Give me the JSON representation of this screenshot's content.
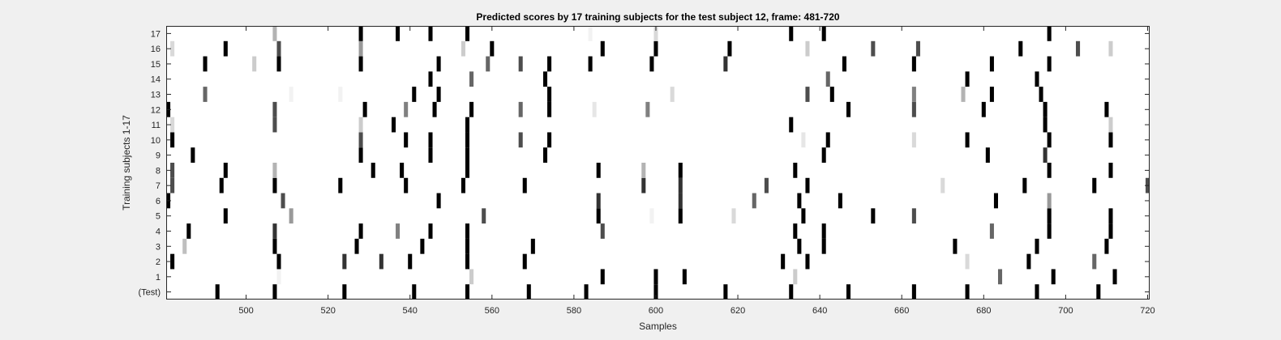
{
  "chart_data": {
    "type": "heatmap",
    "title": "Predicted scores by 17 training subjects for the test subject 12, frame: 481-720",
    "xlabel": "Samples",
    "ylabel": "Training subjects 1-17",
    "xlim": [
      481,
      720
    ],
    "x_ticks": [
      500,
      520,
      540,
      560,
      580,
      600,
      620,
      640,
      660,
      680,
      700,
      720
    ],
    "y_tick_labels": [
      "(Test)",
      "1",
      "2",
      "3",
      "4",
      "5",
      "6",
      "7",
      "8",
      "9",
      "10",
      "11",
      "12",
      "13",
      "14",
      "15",
      "16",
      "17"
    ],
    "colormap": "gray (0 = black, 1 = white)",
    "background_value": 1,
    "rows": [
      {
        "label": "(Test)",
        "cells": [
          [
            493,
            0
          ],
          [
            507,
            0
          ],
          [
            524,
            0
          ],
          [
            541,
            0
          ],
          [
            554,
            0
          ],
          [
            569,
            0
          ],
          [
            583,
            0
          ],
          [
            600,
            0
          ],
          [
            617,
            0
          ],
          [
            633,
            0
          ],
          [
            647,
            0
          ],
          [
            663,
            0
          ],
          [
            676,
            0
          ],
          [
            693,
            0
          ],
          [
            708,
            0
          ]
        ]
      },
      {
        "label": "1",
        "cells": [
          [
            508,
            0.95
          ],
          [
            555,
            0.8
          ],
          [
            587,
            0
          ],
          [
            600,
            0
          ],
          [
            607,
            0
          ],
          [
            634,
            0.8
          ],
          [
            684,
            0.4
          ],
          [
            697,
            0
          ],
          [
            712,
            0
          ]
        ]
      },
      {
        "label": "2",
        "cells": [
          [
            482,
            0
          ],
          [
            508,
            0
          ],
          [
            524,
            0.2
          ],
          [
            533,
            0.2
          ],
          [
            540,
            0
          ],
          [
            554,
            0
          ],
          [
            568,
            0
          ],
          [
            631,
            0
          ],
          [
            637,
            0
          ],
          [
            676,
            0.85
          ],
          [
            691,
            0
          ],
          [
            707,
            0.4
          ]
        ]
      },
      {
        "label": "3",
        "cells": [
          [
            485,
            0.75
          ],
          [
            507,
            0
          ],
          [
            527,
            0
          ],
          [
            543,
            0
          ],
          [
            554,
            0
          ],
          [
            570,
            0
          ],
          [
            635,
            0
          ],
          [
            641,
            0
          ],
          [
            673,
            0
          ],
          [
            693,
            0
          ],
          [
            710,
            0
          ]
        ]
      },
      {
        "label": "4",
        "cells": [
          [
            486,
            0
          ],
          [
            507,
            0.2
          ],
          [
            528,
            0
          ],
          [
            537,
            0.5
          ],
          [
            545,
            0
          ],
          [
            554,
            0
          ],
          [
            587,
            0.3
          ],
          [
            634,
            0
          ],
          [
            641,
            0
          ],
          [
            682,
            0.4
          ],
          [
            696,
            0
          ],
          [
            711,
            0
          ]
        ]
      },
      {
        "label": "5",
        "cells": [
          [
            495,
            0
          ],
          [
            511,
            0.6
          ],
          [
            558,
            0.3
          ],
          [
            586,
            0
          ],
          [
            599,
            0.95
          ],
          [
            606,
            0
          ],
          [
            619,
            0.85
          ],
          [
            636,
            0
          ],
          [
            653,
            0
          ],
          [
            663,
            0.3
          ],
          [
            696,
            0
          ],
          [
            711,
            0
          ]
        ]
      },
      {
        "label": "6",
        "cells": [
          [
            481,
            0
          ],
          [
            509,
            0.3
          ],
          [
            547,
            0
          ],
          [
            586,
            0.2
          ],
          [
            606,
            0.2
          ],
          [
            624,
            0.4
          ],
          [
            635,
            0
          ],
          [
            645,
            0
          ],
          [
            683,
            0
          ],
          [
            696,
            0.6
          ]
        ]
      },
      {
        "label": "7",
        "cells": [
          [
            482,
            0.3
          ],
          [
            494,
            0
          ],
          [
            507,
            0
          ],
          [
            523,
            0
          ],
          [
            539,
            0
          ],
          [
            553,
            0
          ],
          [
            568,
            0
          ],
          [
            597,
            0.2
          ],
          [
            606,
            0.2
          ],
          [
            627,
            0.3
          ],
          [
            637,
            0
          ],
          [
            670,
            0.85
          ],
          [
            690,
            0
          ],
          [
            707,
            0
          ],
          [
            720,
            0.3
          ]
        ]
      },
      {
        "label": "8",
        "cells": [
          [
            482,
            0.3
          ],
          [
            495,
            0
          ],
          [
            507,
            0.7
          ],
          [
            531,
            0
          ],
          [
            538,
            0
          ],
          [
            554,
            0
          ],
          [
            586,
            0
          ],
          [
            597,
            0.7
          ],
          [
            606,
            0
          ],
          [
            634,
            0
          ],
          [
            696,
            0
          ],
          [
            711,
            0
          ]
        ]
      },
      {
        "label": "9",
        "cells": [
          [
            487,
            0
          ],
          [
            528,
            0
          ],
          [
            545,
            0
          ],
          [
            554,
            0
          ],
          [
            573,
            0
          ],
          [
            641,
            0
          ],
          [
            681,
            0
          ],
          [
            695,
            0.2
          ]
        ]
      },
      {
        "label": "10",
        "cells": [
          [
            482,
            0
          ],
          [
            528,
            0.3
          ],
          [
            539,
            0
          ],
          [
            545,
            0
          ],
          [
            554,
            0
          ],
          [
            567,
            0.3
          ],
          [
            574,
            0
          ],
          [
            636,
            0.9
          ],
          [
            642,
            0
          ],
          [
            663,
            0.85
          ],
          [
            676,
            0
          ],
          [
            696,
            0
          ],
          [
            711,
            0
          ]
        ]
      },
      {
        "label": "11",
        "cells": [
          [
            482,
            0.85
          ],
          [
            507,
            0.3
          ],
          [
            528,
            0.8
          ],
          [
            536,
            0
          ],
          [
            554,
            0
          ],
          [
            633,
            0
          ],
          [
            695,
            0
          ],
          [
            711,
            0.8
          ]
        ]
      },
      {
        "label": "12",
        "cells": [
          [
            481,
            0
          ],
          [
            507,
            0.3
          ],
          [
            529,
            0
          ],
          [
            539,
            0.5
          ],
          [
            546,
            0
          ],
          [
            555,
            0
          ],
          [
            567,
            0.4
          ],
          [
            574,
            0
          ],
          [
            585,
            0.9
          ],
          [
            598,
            0.5
          ],
          [
            647,
            0
          ],
          [
            663,
            0.3
          ],
          [
            680,
            0
          ],
          [
            695,
            0
          ],
          [
            710,
            0
          ]
        ]
      },
      {
        "label": "13",
        "cells": [
          [
            490,
            0.4
          ],
          [
            511,
            0.95
          ],
          [
            523,
            0.95
          ],
          [
            541,
            0
          ],
          [
            547,
            0
          ],
          [
            574,
            0
          ],
          [
            604,
            0.85
          ],
          [
            637,
            0.3
          ],
          [
            643,
            0
          ],
          [
            663,
            0.5
          ],
          [
            675,
            0.7
          ],
          [
            682,
            0
          ],
          [
            694,
            0
          ]
        ]
      },
      {
        "label": "14",
        "cells": [
          [
            545,
            0
          ],
          [
            555,
            0.4
          ],
          [
            573,
            0
          ],
          [
            642,
            0.4
          ],
          [
            676,
            0
          ],
          [
            693,
            0
          ]
        ]
      },
      {
        "label": "15",
        "cells": [
          [
            490,
            0
          ],
          [
            502,
            0.8
          ],
          [
            508,
            0
          ],
          [
            528,
            0
          ],
          [
            547,
            0
          ],
          [
            559,
            0.4
          ],
          [
            567,
            0.3
          ],
          [
            574,
            0
          ],
          [
            584,
            0
          ],
          [
            599,
            0
          ],
          [
            617,
            0.2
          ],
          [
            646,
            0
          ],
          [
            663,
            0
          ],
          [
            682,
            0
          ],
          [
            696,
            0
          ]
        ]
      },
      {
        "label": "16",
        "cells": [
          [
            482,
            0.85
          ],
          [
            495,
            0
          ],
          [
            508,
            0.3
          ],
          [
            528,
            0.6
          ],
          [
            553,
            0.8
          ],
          [
            560,
            0
          ],
          [
            587,
            0
          ],
          [
            600,
            0
          ],
          [
            618,
            0
          ],
          [
            637,
            0.8
          ],
          [
            653,
            0.3
          ],
          [
            664,
            0.3
          ],
          [
            689,
            0
          ],
          [
            703,
            0.3
          ],
          [
            711,
            0.8
          ]
        ]
      },
      {
        "label": "17",
        "cells": [
          [
            507,
            0.7
          ],
          [
            528,
            0
          ],
          [
            537,
            0
          ],
          [
            545,
            0
          ],
          [
            554,
            0
          ],
          [
            584,
            0.95
          ],
          [
            600,
            0.85
          ],
          [
            633,
            0
          ],
          [
            641,
            0
          ],
          [
            696,
            0
          ]
        ]
      }
    ]
  }
}
